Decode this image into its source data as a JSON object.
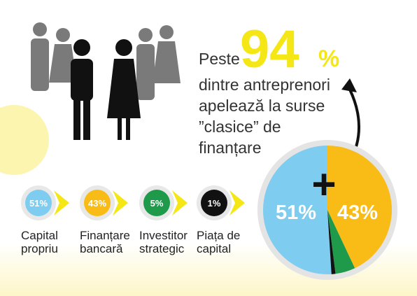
{
  "chart_data": {
    "type": "pie",
    "headline": {
      "prefix": "Peste",
      "number": "94",
      "unit": "%",
      "lines": [
        "dintre antreprenori",
        "apelează la surse",
        "”clasice” de",
        "finanțare"
      ]
    },
    "symbol": "+",
    "categories": [
      "Capital propriu",
      "Finanțare bancară",
      "Investitor strategic",
      "Piața de capital"
    ],
    "values": [
      51,
      43,
      5,
      1
    ],
    "value_labels": [
      "51%",
      "43%",
      "5%",
      "1%"
    ],
    "colors": [
      "#7ecdf0",
      "#f9bc16",
      "#1e9a4a",
      "#111111"
    ]
  }
}
